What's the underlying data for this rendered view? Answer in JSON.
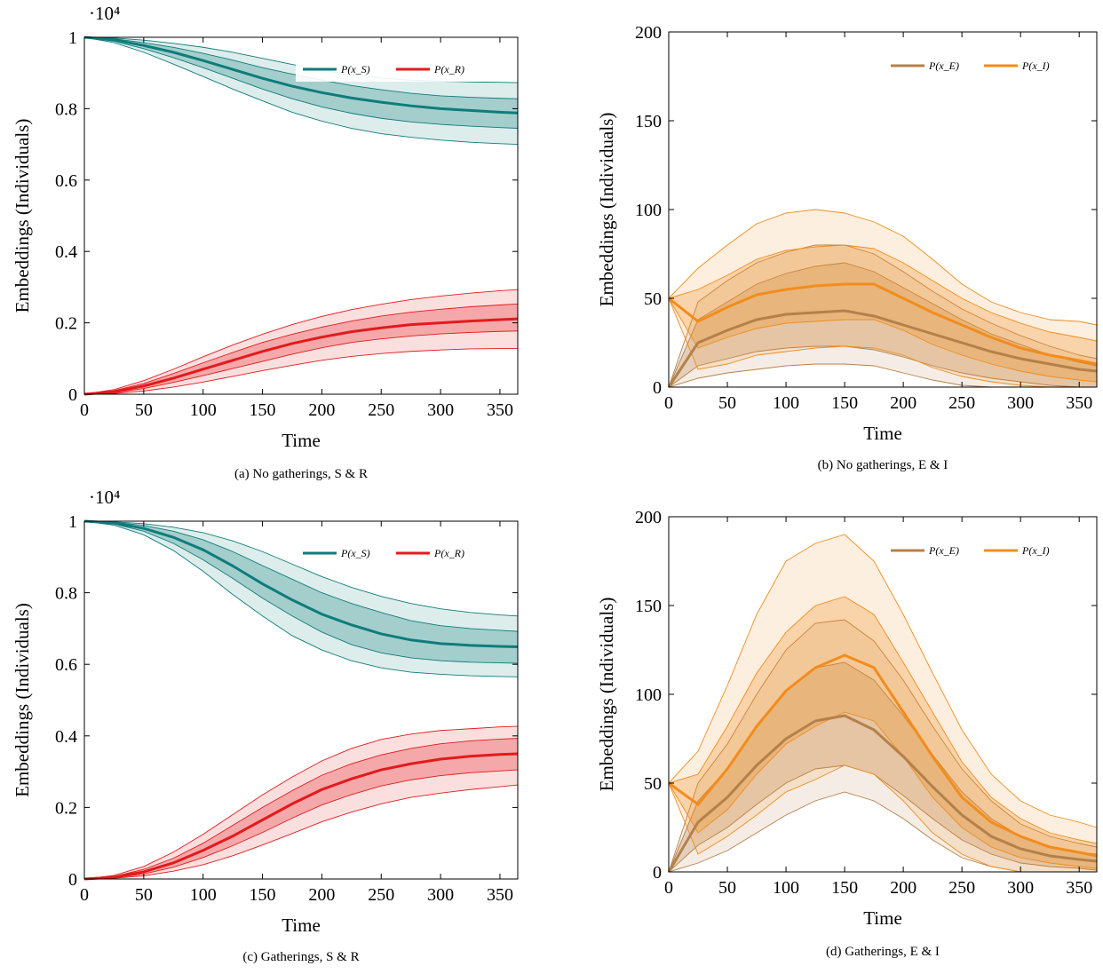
{
  "chart_data": [
    {
      "type": "line",
      "caption": "(a) No gatherings, S & R",
      "xlabel": "Time",
      "ylabel": "Embeddings (Individuals)",
      "y_multiplier": "·10⁴",
      "xlim": [
        0,
        365
      ],
      "xticks": [
        0,
        50,
        100,
        150,
        200,
        250,
        300,
        350
      ],
      "ylim": [
        0,
        1
      ],
      "yticks": [
        0,
        0.2,
        0.4,
        0.6,
        0.8,
        1
      ],
      "x": [
        0,
        25,
        50,
        75,
        100,
        125,
        150,
        175,
        200,
        225,
        250,
        275,
        300,
        325,
        350,
        365
      ],
      "series": [
        {
          "name": "P(x_S)",
          "color": "#0e7c7b",
          "values": [
            1.0,
            0.993,
            0.977,
            0.958,
            0.935,
            0.91,
            0.885,
            0.863,
            0.845,
            0.83,
            0.818,
            0.808,
            0.8,
            0.795,
            0.79,
            0.788
          ],
          "band_inner": {
            "upper": [
              1.0,
              0.996,
              0.985,
              0.972,
              0.955,
              0.936,
              0.915,
              0.897,
              0.88,
              0.865,
              0.853,
              0.843,
              0.836,
              0.832,
              0.829,
              0.828
            ],
            "lower": [
              1.0,
              0.989,
              0.968,
              0.943,
              0.915,
              0.885,
              0.855,
              0.828,
              0.805,
              0.787,
              0.773,
              0.763,
              0.756,
              0.751,
              0.747,
              0.745
            ]
          },
          "band_outer": {
            "upper": [
              1.0,
              0.998,
              0.992,
              0.983,
              0.972,
              0.958,
              0.941,
              0.924,
              0.908,
              0.895,
              0.886,
              0.88,
              0.877,
              0.875,
              0.874,
              0.873
            ],
            "lower": [
              1.0,
              0.985,
              0.958,
              0.925,
              0.89,
              0.855,
              0.822,
              0.79,
              0.765,
              0.745,
              0.73,
              0.72,
              0.712,
              0.706,
              0.702,
              0.7
            ]
          }
        },
        {
          "name": "P(x_R)",
          "color": "#e31a1c",
          "values": [
            0,
            0.007,
            0.023,
            0.045,
            0.07,
            0.095,
            0.12,
            0.142,
            0.16,
            0.175,
            0.186,
            0.195,
            0.2,
            0.205,
            0.209,
            0.211
          ],
          "band_inner": {
            "upper": [
              0,
              0.01,
              0.03,
              0.058,
              0.088,
              0.117,
              0.145,
              0.168,
              0.188,
              0.205,
              0.219,
              0.23,
              0.238,
              0.245,
              0.25,
              0.253
            ],
            "lower": [
              0,
              0.004,
              0.016,
              0.033,
              0.052,
              0.072,
              0.092,
              0.112,
              0.13,
              0.145,
              0.155,
              0.163,
              0.169,
              0.173,
              0.176,
              0.177
            ]
          },
          "band_outer": {
            "upper": [
              0,
              0.013,
              0.038,
              0.07,
              0.105,
              0.138,
              0.168,
              0.195,
              0.218,
              0.237,
              0.252,
              0.265,
              0.275,
              0.283,
              0.29,
              0.293
            ],
            "lower": [
              0,
              0.002,
              0.009,
              0.02,
              0.034,
              0.05,
              0.066,
              0.081,
              0.095,
              0.106,
              0.114,
              0.12,
              0.124,
              0.127,
              0.128,
              0.128
            ]
          }
        }
      ]
    },
    {
      "type": "line",
      "caption": "(b) No gatherings, E & I",
      "xlabel": "Time",
      "ylabel": "Embeddings (Individuals)",
      "xlim": [
        0,
        365
      ],
      "xticks": [
        0,
        50,
        100,
        150,
        200,
        250,
        300,
        350
      ],
      "ylim": [
        0,
        200
      ],
      "yticks": [
        0,
        50,
        100,
        150,
        200
      ],
      "x": [
        0,
        25,
        50,
        75,
        100,
        125,
        150,
        175,
        200,
        225,
        250,
        275,
        300,
        325,
        350,
        365
      ],
      "series": [
        {
          "name": "P(x_E)",
          "color": "#b5804a",
          "values": [
            0,
            25,
            32,
            38,
            41,
            42,
            43,
            40,
            35,
            30,
            25,
            20,
            16,
            13,
            10,
            9
          ],
          "band_inner": {
            "upper": [
              0,
              38,
              48,
              58,
              64,
              68,
              70,
              65,
              56,
              47,
              38,
              30,
              24,
              18,
              14,
              12
            ],
            "lower": [
              0,
              12,
              16,
              20,
              22,
              23,
              23,
              21,
              17,
              12,
              8,
              5,
              3,
              1,
              0,
              0
            ]
          },
          "band_outer": {
            "upper": [
              0,
              48,
              60,
              70,
              76,
              80,
              80,
              75,
              65,
              54,
              44,
              36,
              29,
              23,
              18,
              16
            ],
            "lower": [
              0,
              5,
              8,
              10,
              12,
              13,
              13,
              12,
              8,
              4,
              1,
              0,
              0,
              0,
              0,
              0
            ]
          }
        },
        {
          "name": "P(x_I)",
          "color": "#f28c1c",
          "values": [
            50,
            37,
            45,
            52,
            55,
            57,
            58,
            58,
            50,
            42,
            35,
            28,
            22,
            18,
            15,
            13
          ],
          "band_inner": {
            "upper": [
              50,
              55,
              63,
              72,
              77,
              79,
              80,
              78,
              70,
              60,
              50,
              42,
              36,
              31,
              28,
              26
            ],
            "lower": [
              50,
              22,
              28,
              33,
              36,
              37,
              38,
              38,
              32,
              24,
              18,
              13,
              9,
              6,
              4,
              3
            ]
          },
          "band_outer": {
            "upper": [
              50,
              67,
              80,
              92,
              98,
              100,
              98,
              93,
              85,
              72,
              58,
              48,
              42,
              38,
              37,
              35
            ],
            "lower": [
              50,
              10,
              13,
              18,
              20,
              22,
              23,
              22,
              18,
              11,
              6,
              3,
              1,
              0,
              0,
              0
            ]
          }
        }
      ]
    },
    {
      "type": "line",
      "caption": "(c) Gatherings, S & R",
      "xlabel": "Time",
      "ylabel": "Embeddings (Individuals)",
      "y_multiplier": "·10⁴",
      "xlim": [
        0,
        365
      ],
      "xticks": [
        0,
        50,
        100,
        150,
        200,
        250,
        300,
        350
      ],
      "ylim": [
        0,
        1
      ],
      "yticks": [
        0,
        0.2,
        0.4,
        0.6,
        0.8,
        1
      ],
      "x": [
        0,
        25,
        50,
        75,
        100,
        125,
        150,
        175,
        200,
        225,
        250,
        275,
        300,
        325,
        350,
        365
      ],
      "series": [
        {
          "name": "P(x_S)",
          "color": "#0e7c7b",
          "values": [
            1,
            0.995,
            0.98,
            0.955,
            0.92,
            0.875,
            0.825,
            0.78,
            0.74,
            0.71,
            0.685,
            0.668,
            0.658,
            0.653,
            0.65,
            0.649
          ],
          "band_inner": {
            "upper": [
              1,
              0.997,
              0.988,
              0.972,
              0.948,
              0.915,
              0.876,
              0.838,
              0.8,
              0.77,
              0.745,
              0.722,
              0.708,
              0.7,
              0.695,
              0.692
            ],
            "lower": [
              1,
              0.992,
              0.972,
              0.938,
              0.892,
              0.84,
              0.785,
              0.735,
              0.69,
              0.655,
              0.632,
              0.618,
              0.61,
              0.606,
              0.604,
              0.603
            ]
          },
          "band_outer": {
            "upper": [
              1,
              0.998,
              0.993,
              0.983,
              0.968,
              0.945,
              0.915,
              0.88,
              0.845,
              0.815,
              0.79,
              0.77,
              0.755,
              0.745,
              0.738,
              0.735
            ],
            "lower": [
              1,
              0.989,
              0.962,
              0.918,
              0.86,
              0.795,
              0.735,
              0.68,
              0.64,
              0.61,
              0.59,
              0.578,
              0.572,
              0.568,
              0.566,
              0.565
            ]
          }
        },
        {
          "name": "P(x_R)",
          "color": "#e31a1c",
          "values": [
            0,
            0.005,
            0.02,
            0.045,
            0.08,
            0.12,
            0.165,
            0.21,
            0.25,
            0.28,
            0.305,
            0.322,
            0.335,
            0.343,
            0.348,
            0.35
          ],
          "band_inner": {
            "upper": [
              0,
              0.007,
              0.027,
              0.058,
              0.1,
              0.15,
              0.2,
              0.247,
              0.29,
              0.322,
              0.347,
              0.365,
              0.378,
              0.386,
              0.391,
              0.393
            ],
            "lower": [
              0,
              0.003,
              0.014,
              0.033,
              0.06,
              0.093,
              0.13,
              0.17,
              0.207,
              0.236,
              0.26,
              0.277,
              0.289,
              0.297,
              0.302,
              0.305
            ]
          },
          "band_outer": {
            "upper": [
              0,
              0.01,
              0.035,
              0.075,
              0.125,
              0.18,
              0.235,
              0.285,
              0.33,
              0.365,
              0.39,
              0.405,
              0.415,
              0.42,
              0.425,
              0.427
            ],
            "lower": [
              0,
              0.002,
              0.009,
              0.022,
              0.04,
              0.065,
              0.095,
              0.127,
              0.16,
              0.187,
              0.21,
              0.228,
              0.24,
              0.25,
              0.258,
              0.263
            ]
          }
        }
      ]
    },
    {
      "type": "line",
      "caption": "(d) Gatherings, E & I",
      "xlabel": "Time",
      "ylabel": "Embeddings (Individuals)",
      "xlim": [
        0,
        365
      ],
      "xticks": [
        0,
        50,
        100,
        150,
        200,
        250,
        300,
        350
      ],
      "ylim": [
        0,
        200
      ],
      "yticks": [
        0,
        50,
        100,
        150,
        200
      ],
      "x": [
        0,
        25,
        50,
        75,
        100,
        125,
        150,
        175,
        200,
        225,
        250,
        275,
        300,
        325,
        350,
        365
      ],
      "series": [
        {
          "name": "P(x_E)",
          "color": "#b5804a",
          "values": [
            0,
            28,
            42,
            60,
            75,
            85,
            88,
            80,
            65,
            48,
            32,
            20,
            13,
            9,
            7,
            6
          ],
          "band_inner": {
            "upper": [
              0,
              40,
              58,
              82,
              102,
              115,
              118,
              108,
              88,
              66,
              45,
              30,
              20,
              14,
              11,
              10
            ],
            "lower": [
              0,
              15,
              25,
              38,
              50,
              58,
              60,
              55,
              43,
              30,
              18,
              10,
              5,
              3,
              2,
              1
            ]
          },
          "band_outer": {
            "upper": [
              0,
              50,
              72,
              100,
              125,
              140,
              142,
              130,
              108,
              82,
              58,
              40,
              27,
              20,
              16,
              14
            ],
            "lower": [
              0,
              5,
              12,
              22,
              32,
              40,
              45,
              40,
              30,
              18,
              8,
              3,
              0,
              0,
              0,
              0
            ]
          }
        },
        {
          "name": "P(x_I)",
          "color": "#f28c1c",
          "values": [
            50,
            38,
            58,
            82,
            102,
            115,
            122,
            115,
            90,
            65,
            42,
            28,
            20,
            14,
            11,
            9
          ],
          "band_inner": {
            "upper": [
              50,
              55,
              82,
              112,
              135,
              150,
              155,
              145,
              118,
              90,
              62,
              42,
              30,
              22,
              18,
              16
            ],
            "lower": [
              50,
              22,
              35,
              55,
              72,
              82,
              90,
              85,
              65,
              42,
              25,
              14,
              8,
              5,
              3,
              2
            ]
          },
          "band_outer": {
            "upper": [
              50,
              68,
              105,
              145,
              175,
              185,
              190,
              175,
              145,
              112,
              80,
              55,
              40,
              32,
              28,
              25
            ],
            "lower": [
              50,
              10,
              20,
              32,
              45,
              52,
              60,
              55,
              40,
              22,
              10,
              3,
              0,
              0,
              0,
              0
            ]
          }
        }
      ]
    }
  ]
}
